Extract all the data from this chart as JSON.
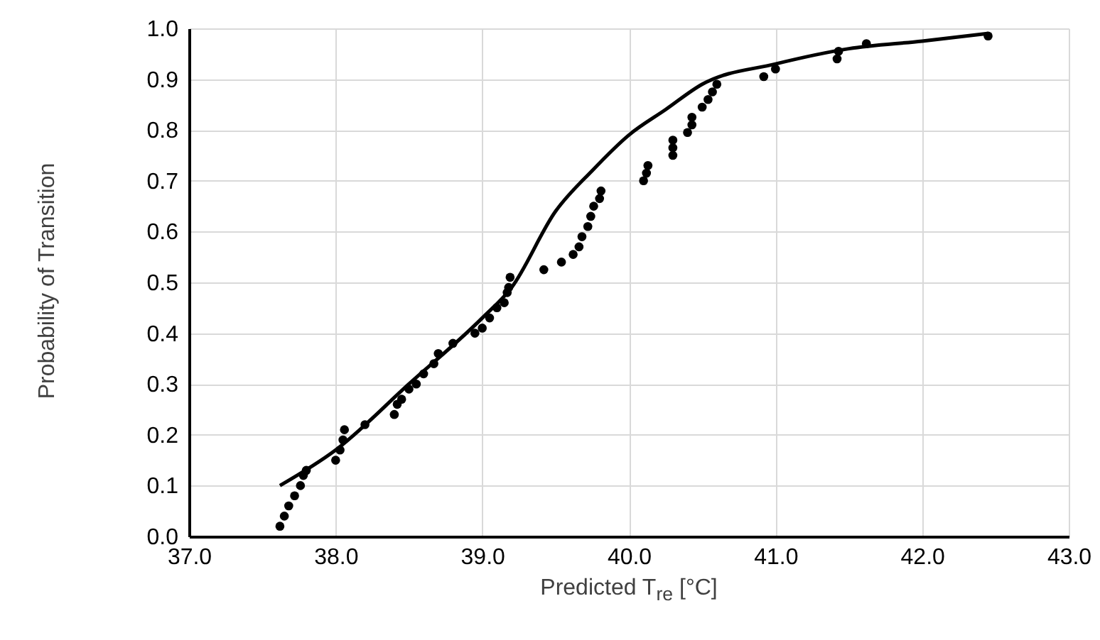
{
  "chart_data": {
    "type": "scatter",
    "xlabel": "Predicted T$_{re}$ [°C]",
    "ylabel": "Probability of Transition",
    "xlim": [
      37.0,
      43.0
    ],
    "xticks": [
      {
        "value": 37,
        "label": "37.0"
      },
      {
        "value": 38,
        "label": "38.0"
      },
      {
        "value": 39,
        "label": "39.0"
      },
      {
        "value": 40,
        "label": "40.0"
      },
      {
        "value": 41,
        "label": "41.0"
      },
      {
        "value": 42,
        "label": "42.0"
      },
      {
        "value": 43,
        "label": "43.0"
      }
    ],
    "ylim": [
      0,
      1
    ],
    "yticks": [
      {
        "value": 0,
        "label": "0.0"
      },
      0.1,
      0.2,
      0.3,
      0.4,
      0.5,
      0.6,
      0.7,
      0.8,
      0.9,
      {
        "value": 1,
        "label": "1.0"
      }
    ],
    "grid": true,
    "series": [
      {
        "type": "scatter",
        "color": "#000000",
        "marker": "circle",
        "x": [
          37.62,
          37.65,
          37.68,
          37.72,
          37.76,
          37.78,
          37.8,
          38.0,
          38.03,
          38.05,
          38.06,
          38.2,
          38.4,
          38.42,
          38.45,
          38.5,
          38.55,
          38.6,
          38.67,
          38.7,
          38.8,
          38.95,
          39.0,
          39.05,
          39.1,
          39.15,
          39.17,
          39.18,
          39.19,
          39.42,
          39.54,
          39.62,
          39.66,
          39.68,
          39.72,
          39.74,
          39.76,
          39.8,
          39.81,
          40.1,
          40.12,
          40.13,
          40.3,
          40.3,
          40.3,
          40.4,
          40.43,
          40.43,
          40.5,
          40.54,
          40.57,
          40.6,
          40.92,
          41.0,
          41.42,
          41.43,
          41.62,
          42.45
        ],
        "values": [
          0.02,
          0.04,
          0.06,
          0.08,
          0.1,
          0.12,
          0.13,
          0.15,
          0.17,
          0.19,
          0.21,
          0.22,
          0.24,
          0.26,
          0.27,
          0.29,
          0.3,
          0.32,
          0.34,
          0.36,
          0.38,
          0.4,
          0.41,
          0.43,
          0.45,
          0.46,
          0.48,
          0.49,
          0.51,
          0.525,
          0.54,
          0.555,
          0.57,
          0.59,
          0.61,
          0.63,
          0.65,
          0.665,
          0.68,
          0.7,
          0.715,
          0.73,
          0.75,
          0.765,
          0.78,
          0.795,
          0.81,
          0.825,
          0.845,
          0.86,
          0.875,
          0.89,
          0.905,
          0.92,
          0.94,
          0.955,
          0.97,
          0.985
        ]
      },
      {
        "type": "line",
        "color": "#000000",
        "marker": "none",
        "line_style": "solid",
        "x": [
          37.62,
          38.0,
          38.5,
          39.0,
          39.2,
          39.5,
          39.75,
          40.0,
          40.25,
          40.5,
          41.0,
          41.5,
          42.0,
          42.45
        ],
        "values": [
          0.1,
          0.17,
          0.3,
          0.43,
          0.49,
          0.64,
          0.72,
          0.79,
          0.84,
          0.89,
          0.93,
          0.96,
          0.975,
          0.99
        ]
      }
    ]
  }
}
